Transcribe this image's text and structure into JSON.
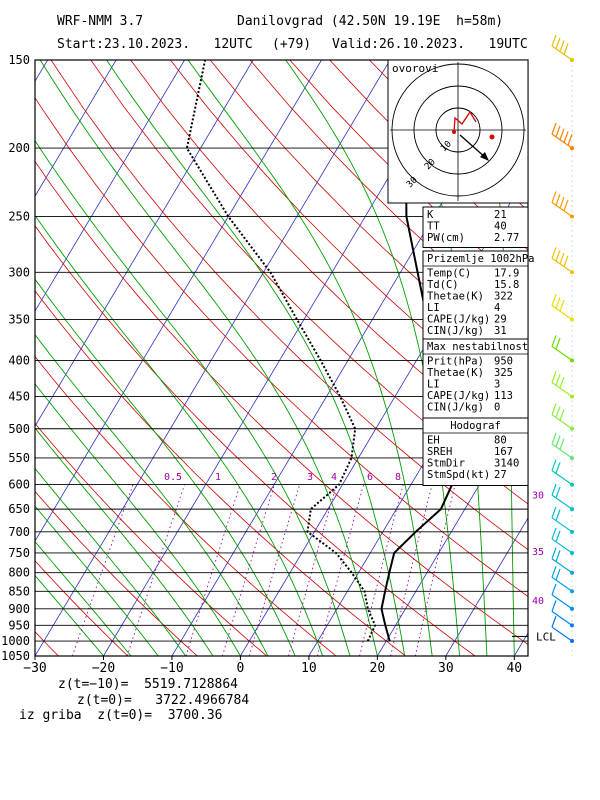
{
  "header": {
    "model": "WRF-NMM 3.7",
    "location": "Danilovgrad (42.50N 19.19E  h=58m)",
    "start": "Start:23.10.2023.   12UTC",
    "offset": "(+79)",
    "valid": "Valid:26.10.2023.   19UTC"
  },
  "chart_data": {
    "type": "skew-t",
    "xlim": [
      -30,
      42
    ],
    "ylim_hpa": [
      1050,
      150
    ],
    "x_ticks": [
      -30,
      -20,
      -10,
      0,
      10,
      20,
      30,
      40
    ],
    "x_tick_labels": [
      "−30",
      "−20",
      "−10",
      "0",
      "10",
      "20",
      "30",
      "40"
    ],
    "pressure_levels": [
      150,
      200,
      250,
      300,
      350,
      400,
      450,
      500,
      550,
      600,
      650,
      700,
      750,
      800,
      850,
      900,
      950,
      1000,
      1050
    ],
    "mixing_ratio_labels": [
      "0.5",
      "1",
      "2",
      "3",
      "4",
      "6",
      "8"
    ],
    "lcl_label": "LCL",
    "temperature_profile": [
      [
        1000,
        20.5
      ],
      [
        950,
        18.5
      ],
      [
        900,
        16.5
      ],
      [
        850,
        15.5
      ],
      [
        800,
        14.5
      ],
      [
        750,
        13.5
      ],
      [
        700,
        14.8
      ],
      [
        650,
        16.5
      ],
      [
        600,
        16
      ],
      [
        550,
        13.5
      ],
      [
        500,
        10.5
      ],
      [
        450,
        7
      ],
      [
        400,
        3
      ],
      [
        350,
        -2
      ],
      [
        300,
        -7.5
      ],
      [
        250,
        -14
      ],
      [
        200,
        -20
      ],
      [
        150,
        -30
      ]
    ],
    "dewpoint_profile": [
      [
        1000,
        17.3
      ],
      [
        950,
        17
      ],
      [
        900,
        14.5
      ],
      [
        850,
        12.5
      ],
      [
        800,
        9
      ],
      [
        750,
        5
      ],
      [
        700,
        -1
      ],
      [
        650,
        -2.5
      ],
      [
        600,
        -0.5
      ],
      [
        550,
        -1
      ],
      [
        500,
        -3
      ],
      [
        450,
        -8
      ],
      [
        400,
        -14
      ],
      [
        350,
        -21
      ],
      [
        300,
        -29
      ],
      [
        250,
        -40
      ],
      [
        200,
        -52
      ],
      [
        150,
        -57
      ]
    ],
    "wind_speed_labels": [
      {
        "p": 620,
        "label": "30"
      },
      {
        "p": 745,
        "label": "35"
      },
      {
        "p": 875,
        "label": "40"
      }
    ]
  },
  "hodograph_panel": {
    "label": "ovorovi",
    "rings": [
      "10",
      "20",
      "30"
    ]
  },
  "indices": {
    "rows": [
      {
        "k": "K",
        "v": "21"
      },
      {
        "k": "TT",
        "v": "40"
      },
      {
        "k": "PW(cm)",
        "v": "2.77"
      }
    ]
  },
  "surface": {
    "title": "Prizemlje 1002hPa",
    "rows": [
      {
        "k": "Temp(C)",
        "v": "17.9"
      },
      {
        "k": "Td(C)",
        "v": "15.8"
      },
      {
        "k": "Thetae(K)",
        "v": "322"
      },
      {
        "k": "LI",
        "v": "4"
      },
      {
        "k": "CAPE(J/kg)",
        "v": "29"
      },
      {
        "k": "CIN(J/kg)",
        "v": "31"
      }
    ]
  },
  "max_unstable": {
    "title": "Max nestabilnost",
    "rows": [
      {
        "k": "Prit(hPa)",
        "v": "950"
      },
      {
        "k": "Thetae(K)",
        "v": "325"
      },
      {
        "k": "LI",
        "v": "3"
      },
      {
        "k": "CAPE(J/kg)",
        "v": "113"
      },
      {
        "k": "CIN(J/kg)",
        "v": "0"
      }
    ]
  },
  "hodograf": {
    "title": "Hodograf",
    "rows": [
      {
        "k": "EH",
        "v": "80"
      },
      {
        "k": "SREH",
        "v": "167"
      },
      {
        "k": "StmDir",
        "v": "3140"
      },
      {
        "k": "StmSpd(kt)",
        "v": "27"
      }
    ]
  },
  "footer": {
    "line1": "z(t=−10)=  5519.7128864",
    "line2": "z(t=0)=   3722.4966784",
    "line3": "iz griba  z(t=0)=  3700.36"
  },
  "colors": {
    "isotherm": "#3030c0",
    "dry_adiabat": "#d00000",
    "moist_adiabat": "#00a000",
    "mixing_ratio": "#a000a0",
    "wind_purple": "#9900aa",
    "wind_cyan": "#00bcd4"
  }
}
